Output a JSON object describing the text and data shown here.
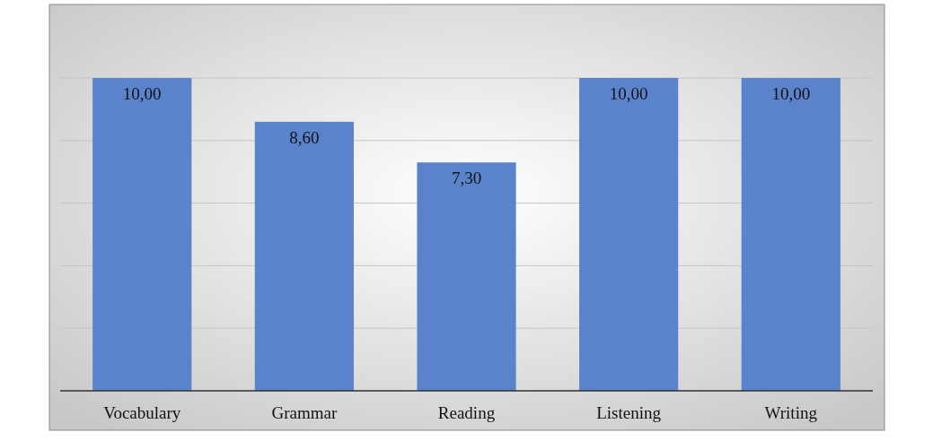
{
  "chart_data": {
    "type": "bar",
    "categories": [
      "Vocabulary",
      "Grammar",
      "Reading",
      "Listening",
      "Writing"
    ],
    "values": [
      10,
      8.6,
      7.3,
      10,
      10
    ],
    "value_labels": [
      "10,00",
      "8,60",
      "7,30",
      "10,00",
      "10,00"
    ],
    "color": "#5b83cc",
    "ylim": [
      0,
      10
    ],
    "yticks": [
      {
        "value": 0,
        "label": null
      },
      {
        "value": 2,
        "label": null
      },
      {
        "value": 4,
        "label": null
      },
      {
        "value": 6,
        "label": null
      },
      {
        "value": 8,
        "label": null
      },
      {
        "value": 10,
        "label": null
      }
    ],
    "grid": "y",
    "tick_labels": "x"
  }
}
